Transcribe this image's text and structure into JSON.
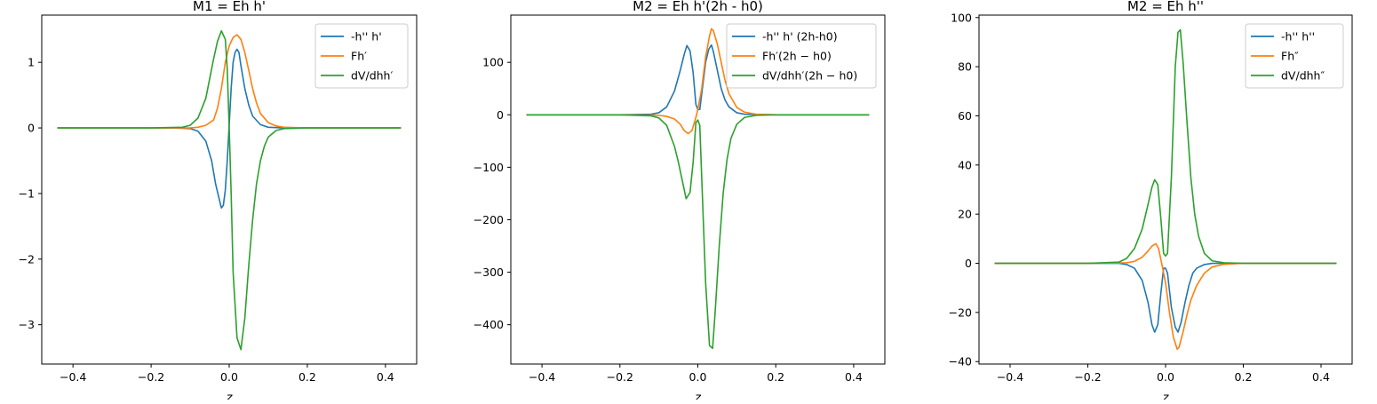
{
  "chart_data": [
    {
      "type": "line",
      "title": "M1 = Eh h'",
      "xlabel": "z",
      "ylabel": "",
      "xlim": [
        -0.48,
        0.48
      ],
      "ylim": [
        -3.6,
        1.72
      ],
      "xticks": [
        -0.4,
        -0.2,
        0.0,
        0.2,
        0.4
      ],
      "xtick_labels": [
        "−0.4",
        "−0.2",
        "0.0",
        "0.2",
        "0.4"
      ],
      "yticks": [
        -3,
        -2,
        -1,
        0,
        1
      ],
      "ytick_labels": [
        "−3",
        "−2",
        "−1",
        "0",
        "1"
      ],
      "legend_position": "top-right",
      "grid": false,
      "series": [
        {
          "name": "-h'' h'",
          "color": "#1f77b4",
          "points": [
            [
              -0.44,
              0
            ],
            [
              -0.2,
              0
            ],
            [
              -0.14,
              0
            ],
            [
              -0.1,
              -0.01
            ],
            [
              -0.08,
              -0.05
            ],
            [
              -0.06,
              -0.2
            ],
            [
              -0.045,
              -0.5
            ],
            [
              -0.035,
              -0.85
            ],
            [
              -0.025,
              -1.1
            ],
            [
              -0.02,
              -1.22
            ],
            [
              -0.015,
              -1.18
            ],
            [
              -0.01,
              -0.95
            ],
            [
              -0.005,
              -0.5
            ],
            [
              0,
              0.05
            ],
            [
              0.005,
              0.6
            ],
            [
              0.01,
              1.0
            ],
            [
              0.015,
              1.15
            ],
            [
              0.02,
              1.2
            ],
            [
              0.025,
              1.15
            ],
            [
              0.03,
              0.95
            ],
            [
              0.04,
              0.6
            ],
            [
              0.05,
              0.35
            ],
            [
              0.06,
              0.18
            ],
            [
              0.08,
              0.05
            ],
            [
              0.1,
              0.01
            ],
            [
              0.14,
              0
            ],
            [
              0.2,
              0
            ],
            [
              0.44,
              0
            ]
          ]
        },
        {
          "name": "Fh′",
          "color": "#ff7f0e",
          "points": [
            [
              -0.44,
              0
            ],
            [
              -0.2,
              0
            ],
            [
              -0.1,
              0
            ],
            [
              -0.08,
              0.01
            ],
            [
              -0.06,
              0.04
            ],
            [
              -0.04,
              0.12
            ],
            [
              -0.03,
              0.3
            ],
            [
              -0.02,
              0.6
            ],
            [
              -0.01,
              1.0
            ],
            [
              0,
              1.25
            ],
            [
              0.01,
              1.38
            ],
            [
              0.02,
              1.42
            ],
            [
              0.03,
              1.35
            ],
            [
              0.04,
              1.15
            ],
            [
              0.05,
              0.88
            ],
            [
              0.06,
              0.6
            ],
            [
              0.07,
              0.38
            ],
            [
              0.08,
              0.22
            ],
            [
              0.1,
              0.08
            ],
            [
              0.12,
              0.03
            ],
            [
              0.14,
              0.01
            ],
            [
              0.2,
              0
            ],
            [
              0.44,
              0
            ]
          ]
        },
        {
          "name": "dV/dhh′",
          "color": "#2ca02c",
          "points": [
            [
              -0.44,
              0
            ],
            [
              -0.2,
              0
            ],
            [
              -0.12,
              0.01
            ],
            [
              -0.1,
              0.04
            ],
            [
              -0.08,
              0.15
            ],
            [
              -0.06,
              0.45
            ],
            [
              -0.05,
              0.75
            ],
            [
              -0.04,
              1.05
            ],
            [
              -0.03,
              1.32
            ],
            [
              -0.02,
              1.48
            ],
            [
              -0.01,
              1.35
            ],
            [
              -0.005,
              0.9
            ],
            [
              0,
              0
            ],
            [
              0.005,
              -1.0
            ],
            [
              0.01,
              -2.2
            ],
            [
              0.02,
              -3.2
            ],
            [
              0.03,
              -3.38
            ],
            [
              0.04,
              -2.9
            ],
            [
              0.05,
              -2.1
            ],
            [
              0.06,
              -1.4
            ],
            [
              0.07,
              -0.85
            ],
            [
              0.08,
              -0.5
            ],
            [
              0.09,
              -0.28
            ],
            [
              0.1,
              -0.14
            ],
            [
              0.12,
              -0.04
            ],
            [
              0.14,
              -0.01
            ],
            [
              0.2,
              0
            ],
            [
              0.44,
              0
            ]
          ]
        }
      ]
    },
    {
      "type": "line",
      "title": "M2 = Eh h'(2h - h0)",
      "xlabel": "z",
      "ylabel": "",
      "xlim": [
        -0.48,
        0.48
      ],
      "ylim": [
        -475,
        190
      ],
      "xticks": [
        -0.4,
        -0.2,
        0.0,
        0.2,
        0.4
      ],
      "xtick_labels": [
        "−0.4",
        "−0.2",
        "0.0",
        "0.2",
        "0.4"
      ],
      "yticks": [
        -400,
        -300,
        -200,
        -100,
        0,
        100
      ],
      "ytick_labels": [
        "−400",
        "−300",
        "−200",
        "−100",
        "0",
        "100"
      ],
      "legend_position": "top-right",
      "grid": false,
      "series": [
        {
          "name": "-h'' h' (2h-h0)",
          "color": "#1f77b4",
          "points": [
            [
              -0.44,
              0
            ],
            [
              -0.2,
              0
            ],
            [
              -0.12,
              1
            ],
            [
              -0.1,
              4
            ],
            [
              -0.08,
              15
            ],
            [
              -0.06,
              45
            ],
            [
              -0.045,
              85
            ],
            [
              -0.035,
              115
            ],
            [
              -0.028,
              132
            ],
            [
              -0.02,
              122
            ],
            [
              -0.012,
              80
            ],
            [
              -0.005,
              20
            ],
            [
              0,
              10
            ],
            [
              0.005,
              10
            ],
            [
              0.01,
              40
            ],
            [
              0.02,
              100
            ],
            [
              0.028,
              125
            ],
            [
              0.035,
              133
            ],
            [
              0.04,
              120
            ],
            [
              0.05,
              85
            ],
            [
              0.06,
              50
            ],
            [
              0.07,
              28
            ],
            [
              0.08,
              15
            ],
            [
              0.1,
              4
            ],
            [
              0.12,
              1
            ],
            [
              0.2,
              0
            ],
            [
              0.44,
              0
            ]
          ]
        },
        {
          "name": "Fh′(2h − h0)",
          "color": "#ff7f0e",
          "points": [
            [
              -0.44,
              0
            ],
            [
              -0.2,
              0
            ],
            [
              -0.1,
              -1
            ],
            [
              -0.08,
              -3
            ],
            [
              -0.06,
              -8
            ],
            [
              -0.045,
              -18
            ],
            [
              -0.035,
              -30
            ],
            [
              -0.025,
              -36
            ],
            [
              -0.015,
              -30
            ],
            [
              -0.005,
              -5
            ],
            [
              0,
              10
            ],
            [
              0.01,
              50
            ],
            [
              0.02,
              110
            ],
            [
              0.03,
              150
            ],
            [
              0.035,
              164
            ],
            [
              0.04,
              160
            ],
            [
              0.05,
              135
            ],
            [
              0.06,
              100
            ],
            [
              0.07,
              65
            ],
            [
              0.08,
              40
            ],
            [
              0.1,
              14
            ],
            [
              0.12,
              5
            ],
            [
              0.15,
              1
            ],
            [
              0.2,
              0
            ],
            [
              0.44,
              0
            ]
          ]
        },
        {
          "name": "dV/dhh′(2h − h0)",
          "color": "#2ca02c",
          "points": [
            [
              -0.44,
              0
            ],
            [
              -0.2,
              0
            ],
            [
              -0.12,
              -2
            ],
            [
              -0.1,
              -6
            ],
            [
              -0.08,
              -20
            ],
            [
              -0.06,
              -60
            ],
            [
              -0.05,
              -90
            ],
            [
              -0.04,
              -125
            ],
            [
              -0.03,
              -160
            ],
            [
              -0.02,
              -148
            ],
            [
              -0.012,
              -90
            ],
            [
              -0.005,
              -15
            ],
            [
              0,
              -10
            ],
            [
              0.005,
              -20
            ],
            [
              0.01,
              -120
            ],
            [
              0.02,
              -320
            ],
            [
              0.03,
              -440
            ],
            [
              0.038,
              -445
            ],
            [
              0.045,
              -370
            ],
            [
              0.055,
              -250
            ],
            [
              0.065,
              -150
            ],
            [
              0.075,
              -85
            ],
            [
              0.085,
              -45
            ],
            [
              0.1,
              -18
            ],
            [
              0.12,
              -5
            ],
            [
              0.15,
              -1
            ],
            [
              0.2,
              0
            ],
            [
              0.44,
              0
            ]
          ]
        }
      ]
    },
    {
      "type": "line",
      "title": "M2 = Eh h''",
      "xlabel": "z",
      "ylabel": "",
      "xlim": [
        -0.48,
        0.48
      ],
      "ylim": [
        -41,
        101
      ],
      "xticks": [
        -0.4,
        -0.2,
        0.0,
        0.2,
        0.4
      ],
      "xtick_labels": [
        "−0.4",
        "−0.2",
        "0.0",
        "0.2",
        "0.4"
      ],
      "yticks": [
        -40,
        -20,
        0,
        20,
        40,
        60,
        80,
        100
      ],
      "ytick_labels": [
        "−40",
        "−20",
        "0",
        "20",
        "40",
        "60",
        "80",
        "100"
      ],
      "legend_position": "top-right",
      "grid": false,
      "series": [
        {
          "name": "-h'' h''",
          "color": "#1f77b4",
          "points": [
            [
              -0.44,
              0
            ],
            [
              -0.2,
              0
            ],
            [
              -0.12,
              0
            ],
            [
              -0.1,
              -0.5
            ],
            [
              -0.08,
              -2
            ],
            [
              -0.06,
              -7
            ],
            [
              -0.045,
              -16
            ],
            [
              -0.035,
              -25
            ],
            [
              -0.028,
              -28
            ],
            [
              -0.02,
              -25
            ],
            [
              -0.012,
              -12
            ],
            [
              -0.005,
              -2
            ],
            [
              0,
              -2
            ],
            [
              0.005,
              -4
            ],
            [
              0.015,
              -18
            ],
            [
              0.025,
              -26
            ],
            [
              0.032,
              -28
            ],
            [
              0.04,
              -24
            ],
            [
              0.05,
              -16
            ],
            [
              0.06,
              -9
            ],
            [
              0.07,
              -4
            ],
            [
              0.08,
              -2
            ],
            [
              0.1,
              -0.5
            ],
            [
              0.12,
              0
            ],
            [
              0.2,
              0
            ],
            [
              0.44,
              0
            ]
          ]
        },
        {
          "name": "Fh″",
          "color": "#ff7f0e",
          "points": [
            [
              -0.44,
              0
            ],
            [
              -0.2,
              0
            ],
            [
              -0.1,
              0.2
            ],
            [
              -0.08,
              0.8
            ],
            [
              -0.06,
              2.5
            ],
            [
              -0.045,
              5
            ],
            [
              -0.035,
              7
            ],
            [
              -0.025,
              8
            ],
            [
              -0.018,
              6
            ],
            [
              -0.01,
              0
            ],
            [
              0,
              -8
            ],
            [
              0.01,
              -20
            ],
            [
              0.02,
              -30
            ],
            [
              0.03,
              -35
            ],
            [
              0.035,
              -34
            ],
            [
              0.045,
              -28
            ],
            [
              0.055,
              -21
            ],
            [
              0.065,
              -15
            ],
            [
              0.08,
              -9
            ],
            [
              0.1,
              -4
            ],
            [
              0.12,
              -1.5
            ],
            [
              0.15,
              -0.4
            ],
            [
              0.2,
              0
            ],
            [
              0.44,
              0
            ]
          ]
        },
        {
          "name": "dV/dhh″",
          "color": "#2ca02c",
          "points": [
            [
              -0.44,
              0
            ],
            [
              -0.2,
              0
            ],
            [
              -0.12,
              0.5
            ],
            [
              -0.1,
              2
            ],
            [
              -0.08,
              6
            ],
            [
              -0.06,
              14
            ],
            [
              -0.045,
              24
            ],
            [
              -0.035,
              31
            ],
            [
              -0.028,
              34
            ],
            [
              -0.02,
              32
            ],
            [
              -0.012,
              18
            ],
            [
              -0.005,
              4
            ],
            [
              0,
              3
            ],
            [
              0.005,
              4
            ],
            [
              0.015,
              35
            ],
            [
              0.025,
              80
            ],
            [
              0.032,
              94
            ],
            [
              0.038,
              95
            ],
            [
              0.045,
              82
            ],
            [
              0.055,
              58
            ],
            [
              0.065,
              35
            ],
            [
              0.075,
              20
            ],
            [
              0.085,
              11
            ],
            [
              0.1,
              4
            ],
            [
              0.12,
              1
            ],
            [
              0.15,
              0.2
            ],
            [
              0.2,
              0
            ],
            [
              0.44,
              0
            ]
          ]
        }
      ]
    }
  ]
}
